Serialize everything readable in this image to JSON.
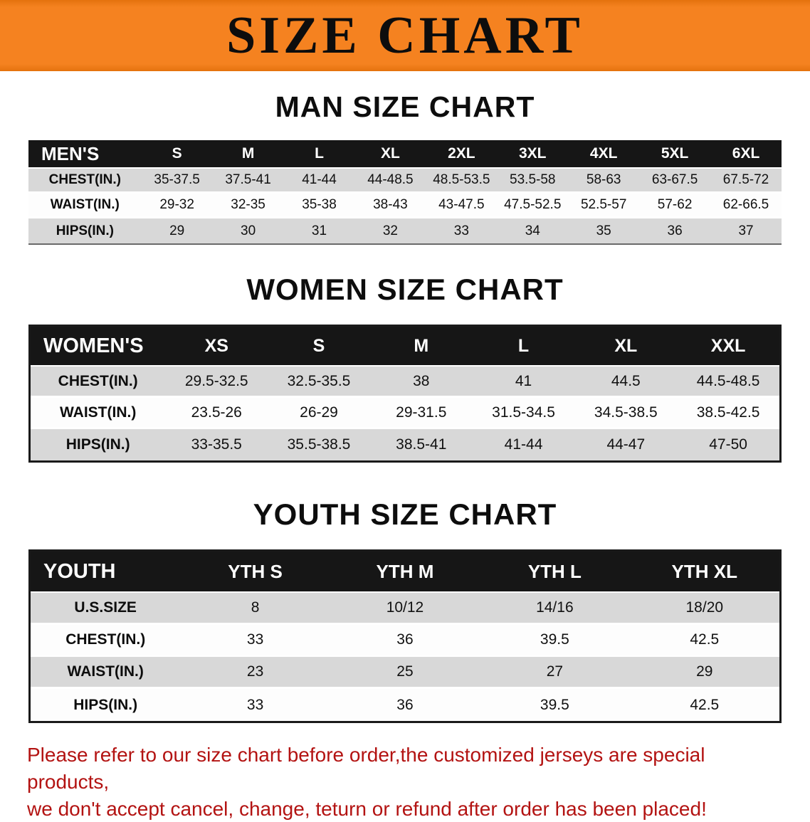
{
  "banner": {
    "title": "SIZE CHART",
    "bg_color": "#f58220"
  },
  "sections": [
    {
      "id": "mens",
      "heading": "MAN SIZE CHART",
      "table": {
        "title": "MEN'S",
        "columns": [
          "S",
          "M",
          "L",
          "XL",
          "2XL",
          "3XL",
          "4XL",
          "5XL",
          "6XL"
        ],
        "rows": [
          {
            "label": "CHEST(IN.)",
            "values": [
              "35-37.5",
              "37.5-41",
              "41-44",
              "44-48.5",
              "48.5-53.5",
              "53.5-58",
              "58-63",
              "63-67.5",
              "67.5-72"
            ]
          },
          {
            "label": "WAIST(IN.)",
            "values": [
              "29-32",
              "32-35",
              "35-38",
              "38-43",
              "43-47.5",
              "47.5-52.5",
              "52.5-57",
              "57-62",
              "62-66.5"
            ]
          },
          {
            "label": "HIPS(IN.)",
            "values": [
              "29",
              "30",
              "31",
              "32",
              "33",
              "34",
              "35",
              "36",
              "37"
            ]
          }
        ]
      }
    },
    {
      "id": "womens",
      "heading": "WOMEN SIZE CHART",
      "table": {
        "title": "WOMEN'S",
        "columns": [
          "XS",
          "S",
          "M",
          "L",
          "XL",
          "XXL"
        ],
        "rows": [
          {
            "label": "CHEST(IN.)",
            "values": [
              "29.5-32.5",
              "32.5-35.5",
              "38",
              "41",
              "44.5",
              "44.5-48.5"
            ]
          },
          {
            "label": "WAIST(IN.)",
            "values": [
              "23.5-26",
              "26-29",
              "29-31.5",
              "31.5-34.5",
              "34.5-38.5",
              "38.5-42.5"
            ]
          },
          {
            "label": "HIPS(IN.)",
            "values": [
              "33-35.5",
              "35.5-38.5",
              "38.5-41",
              "41-44",
              "44-47",
              "47-50"
            ]
          }
        ]
      }
    },
    {
      "id": "youth",
      "heading": "YOUTH SIZE CHART",
      "table": {
        "title": "YOUTH",
        "columns": [
          "YTH S",
          "YTH M",
          "YTH L",
          "YTH XL"
        ],
        "rows": [
          {
            "label": "U.S.SIZE",
            "values": [
              "8",
              "10/12",
              "14/16",
              "18/20"
            ]
          },
          {
            "label": "CHEST(IN.)",
            "values": [
              "33",
              "36",
              "39.5",
              "42.5"
            ]
          },
          {
            "label": "WAIST(IN.)",
            "values": [
              "23",
              "25",
              "27",
              "29"
            ]
          },
          {
            "label": "HIPS(IN.)",
            "values": [
              "33",
              "36",
              "39.5",
              "42.5"
            ]
          }
        ]
      }
    }
  ],
  "disclaimer": {
    "line1": "Please refer to our size chart before order,the customized jerseys are special products,",
    "line2": "we don't accept cancel, change, teturn or refund after order has been placed!",
    "color": "#b31312"
  }
}
